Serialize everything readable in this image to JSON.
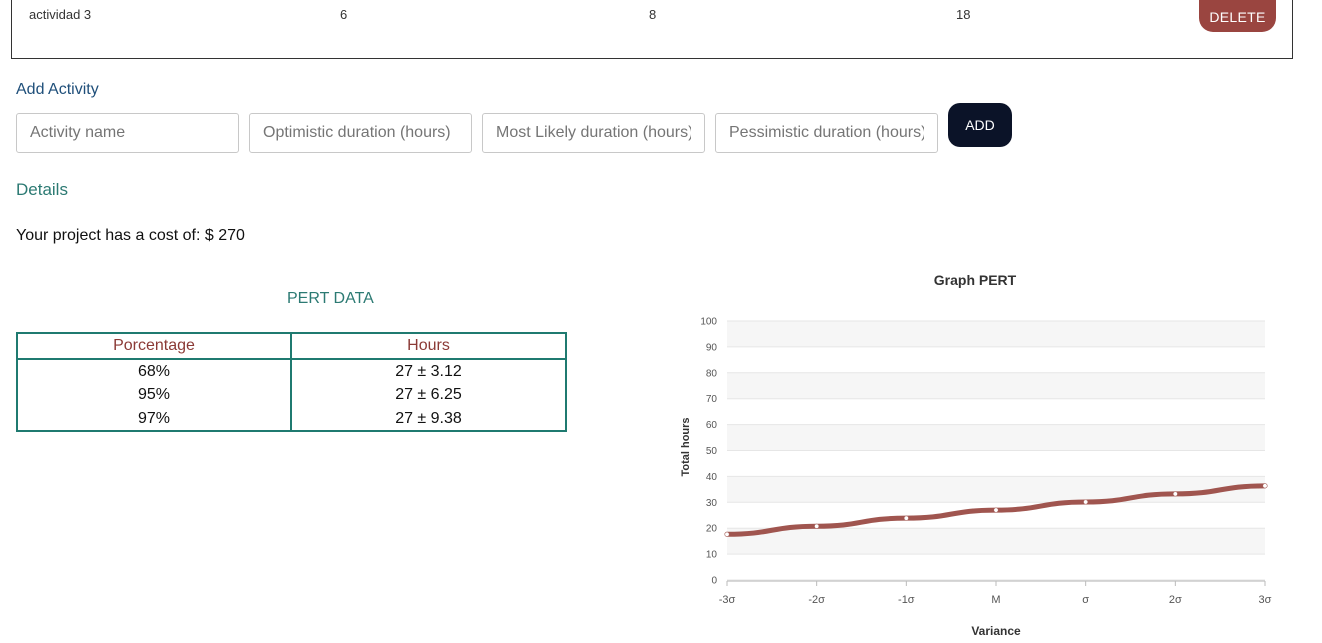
{
  "activity_row": {
    "name": "actividad 3",
    "optimistic": "6",
    "most_likely": "8",
    "pessimistic": "18",
    "delete_label": "DELETE"
  },
  "add_activity": {
    "title": "Add Activity",
    "name_placeholder": "Activity name",
    "optimistic_placeholder": "Optimistic duration (hours)",
    "most_likely_placeholder": "Most Likely duration (hours)",
    "pessimistic_placeholder": "Pessimistic duration (hours)",
    "add_label": "ADD"
  },
  "details": {
    "title": "Details",
    "cost_text": "Your project has a cost of: $ 270"
  },
  "pert_data": {
    "title": "PERT DATA",
    "headers": [
      "Porcentage",
      "Hours"
    ],
    "rows": [
      [
        "68%",
        "27 ± 3.12"
      ],
      [
        "95%",
        "27 ± 6.25"
      ],
      [
        "97%",
        "27 ± 9.38"
      ]
    ]
  },
  "colors": {
    "delete": "#9a4540",
    "add": "#0b1328",
    "teal": "#1f7a70",
    "line": "#a0554f"
  },
  "chart_data": {
    "type": "line",
    "title": "Graph PERT",
    "xlabel": "Variance",
    "ylabel": "Total hours",
    "categories": [
      "-3σ",
      "-2σ",
      "-1σ",
      "M",
      "σ",
      "2σ",
      "3σ"
    ],
    "ylim": [
      0,
      100
    ],
    "yticks": [
      0,
      10,
      20,
      30,
      40,
      50,
      60,
      70,
      80,
      90,
      100
    ],
    "grid": true,
    "legend": "none",
    "series": [
      {
        "values": [
          17.64,
          20.76,
          23.88,
          27,
          30.12,
          33.24,
          36.36
        ]
      }
    ]
  }
}
